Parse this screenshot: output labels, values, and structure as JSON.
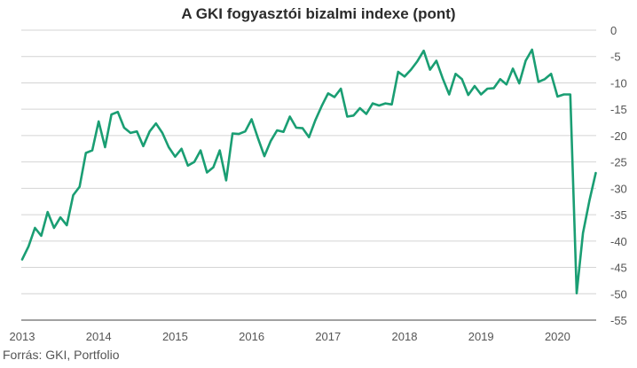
{
  "chart_data": {
    "type": "line",
    "title": "A GKI fogyasztói bizalmi indexe (pont)",
    "source": "Forrás: GKI, Portfolio",
    "xlabel": "",
    "ylabel": "",
    "x_ticks": [
      "2013",
      "2014",
      "2015",
      "2016",
      "2017",
      "2018",
      "2019",
      "2020"
    ],
    "y_ticks": [
      0,
      -5,
      -10,
      -15,
      -20,
      -25,
      -30,
      -35,
      -40,
      -45,
      -50,
      -55
    ],
    "ylim": [
      -55,
      0
    ],
    "grid": true,
    "line_color": "#1a9e73",
    "series": [
      {
        "values": [
          -43.5,
          -41,
          -37.5,
          -39,
          -34.5,
          -37.5,
          -35.5,
          -37,
          -31.3,
          -29.7,
          -23.3,
          -22.8,
          -17.3,
          -22.2,
          -16,
          -15.5,
          -18.5,
          -19.5,
          -19.2,
          -22,
          -19.2,
          -17.7,
          -19.5,
          -22.2,
          -24,
          -22.5,
          -25.7,
          -25,
          -22.8,
          -27,
          -26,
          -22.8,
          -28.5,
          -19.6,
          -19.7,
          -19.2,
          -16.9,
          -20.5,
          -23.9,
          -21,
          -19,
          -19.3,
          -16.4,
          -18.5,
          -18.6,
          -20.3,
          -17.1,
          -14.4,
          -12,
          -12.7,
          -11.1,
          -16.4,
          -16.2,
          -14.8,
          -15.9,
          -13.9,
          -14.3,
          -13.9,
          -14.1,
          -7.9,
          -8.8,
          -7.5,
          -5.9,
          -3.9,
          -7.5,
          -5.8,
          -9.2,
          -12.2,
          -8.3,
          -9.3,
          -12.3,
          -10.6,
          -12.2,
          -11.1,
          -11,
          -9.3,
          -10.3,
          -7.3,
          -10.1,
          -5.8,
          -3.7,
          -9.8,
          -9.3,
          -8.3,
          -12.6,
          -12.2,
          -12.2,
          -49.9,
          -38.5,
          -32.4,
          -27.1
        ]
      }
    ]
  }
}
